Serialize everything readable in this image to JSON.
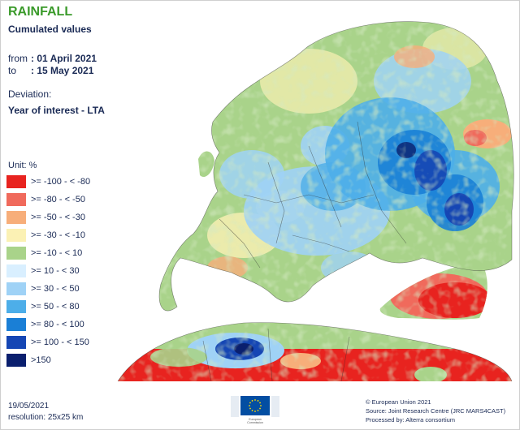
{
  "title": "RAINFALL",
  "subtitle": "Cumulated values",
  "period": {
    "from_label": "from",
    "from_value": ": 01 April 2021",
    "to_label": "to",
    "to_value": ": 15 May 2021"
  },
  "deviation_label": "Deviation:",
  "deviation_type": "Year of interest - LTA",
  "legend": {
    "unit_label": "Unit:  %",
    "items": [
      {
        "label": ">= -100 - < -80",
        "color": "#e8231f"
      },
      {
        "label": ">= -80 - < -50",
        "color": "#f06a5c"
      },
      {
        "label": ">= -50 - < -30",
        "color": "#f7ae7a"
      },
      {
        "label": ">= -30 - < -10",
        "color": "#fbf1b4"
      },
      {
        "label": ">= -10 - < 10",
        "color": "#a9d38a"
      },
      {
        "label": ">= 10 - < 30",
        "color": "#d9efff"
      },
      {
        "label": ">= 30 - < 50",
        "color": "#9fd2f6"
      },
      {
        "label": ">= 50 - < 80",
        "color": "#4daee9"
      },
      {
        "label": ">= 80 - < 100",
        "color": "#1a7fd6"
      },
      {
        "label": ">= 100 - < 150",
        "color": "#1546b4"
      },
      {
        "label": ">150",
        "color": "#0a1f6e"
      }
    ]
  },
  "footer": {
    "date": "19/05/2021",
    "resolution": "resolution:  25x25 km"
  },
  "credits": [
    "© European Union 2021",
    "Source: Joint Research Centre (JRC MARS4CAST)",
    "Processed by: Alterra consortium"
  ],
  "logo_text": [
    "European",
    "Commission"
  ],
  "colors": {
    "title": "#3a9a2a",
    "text": "#1a2a55",
    "logo_blue": "#034ea2",
    "logo_star": "#ffdd00"
  }
}
